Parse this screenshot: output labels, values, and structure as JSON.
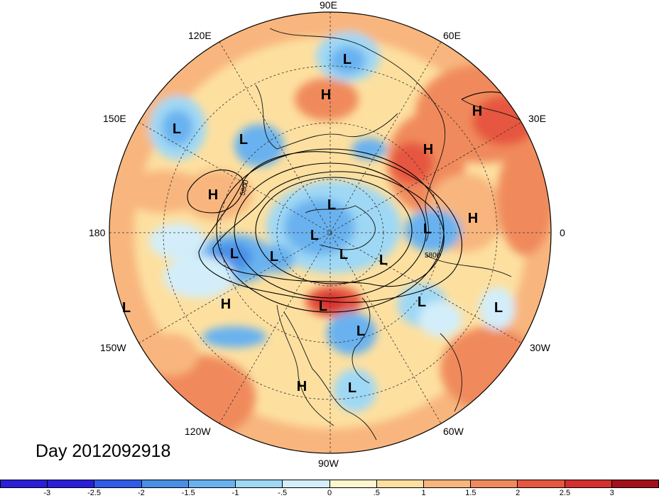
{
  "date_label": "Day 2012092918",
  "colors": {
    "levels": [
      "#2a1fd6",
      "#2f5de8",
      "#4a8fe6",
      "#69b2ef",
      "#9fd8f5",
      "#d3eefa",
      "#fff6cf",
      "#fde0a0",
      "#f8b67e",
      "#f08a5c",
      "#e6573f",
      "#d42f2f",
      "#a2101b"
    ]
  },
  "longitude_labels": {
    "top": "90E",
    "bottom": "90W",
    "left": "180",
    "right": "0",
    "ul1": "120E",
    "ul2": "150E",
    "ur1": "60E",
    "ur2": "30E",
    "ll1": "150W",
    "ll2": "120W",
    "lr1": "30W",
    "lr2": "60W"
  },
  "contour_labels": [
    "5800",
    "5800"
  ],
  "pressure_centers": [
    {
      "label": "L"
    },
    {
      "label": "H"
    },
    {
      "label": "H"
    },
    {
      "label": "L"
    },
    {
      "label": "L"
    },
    {
      "label": "H"
    },
    {
      "label": "H"
    },
    {
      "label": "L"
    },
    {
      "label": "H"
    },
    {
      "label": "L"
    },
    {
      "label": "L"
    },
    {
      "label": "L"
    },
    {
      "label": "L"
    },
    {
      "label": "L"
    },
    {
      "label": "L"
    },
    {
      "label": "L"
    },
    {
      "label": "L"
    },
    {
      "label": "H"
    },
    {
      "label": "L"
    },
    {
      "label": "L"
    },
    {
      "label": "H"
    },
    {
      "label": "L"
    },
    {
      "label": "L"
    }
  ],
  "colorbar_ticks": [
    "-3",
    "-2.5",
    "-2",
    "-1.5",
    "-1",
    "-.5",
    "0",
    ".5",
    "1",
    "1.5",
    "2",
    "2.5",
    "3"
  ]
}
